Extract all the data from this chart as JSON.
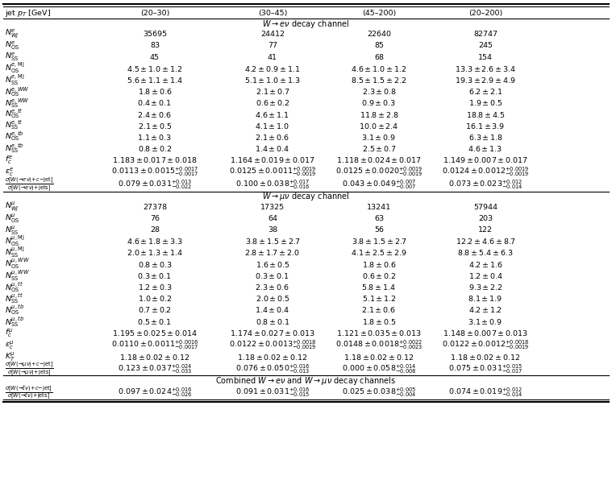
{
  "col_headers": [
    "jet $p_T$ [GeV]",
    "(20–30)",
    "(30–45)",
    "(45–200)",
    "(20–200)"
  ],
  "section1_header": "$W \\rightarrow e\\nu$ decay channel",
  "section1_rows": [
    [
      "$N^{e}_{Wj}$",
      "35695",
      "24412",
      "22640",
      "82747"
    ],
    [
      "$N^{e}_{\\mathrm{OS}}$",
      "83",
      "77",
      "85",
      "245"
    ],
    [
      "$N^{e}_{\\mathrm{SS}}$",
      "45",
      "41",
      "68",
      "154"
    ],
    [
      "$N^{e,\\mathrm{MJ}}_{\\mathrm{OS}}$",
      "$4.5\\pm1.0\\pm1.2$",
      "$4.2\\pm0.9\\pm1.1$",
      "$4.6\\pm1.0\\pm1.2$",
      "$13.3\\pm2.6\\pm3.4$"
    ],
    [
      "$N^{e,\\mathrm{MJ}}_{\\mathrm{SS}}$",
      "$5.6\\pm1.1\\pm1.4$",
      "$5.1\\pm1.0\\pm1.3$",
      "$8.5\\pm1.5\\pm2.2$",
      "$19.3\\pm2.9\\pm4.9$"
    ],
    [
      "$N^{e,WW}_{\\mathrm{OS}}$",
      "$1.8\\pm0.6$",
      "$2.1\\pm0.7$",
      "$2.3\\pm0.8$",
      "$6.2\\pm2.1$"
    ],
    [
      "$N^{e,WW}_{\\mathrm{SS}}$",
      "$0.4\\pm0.1$",
      "$0.6\\pm0.2$",
      "$0.9\\pm0.3$",
      "$1.9\\pm0.5$"
    ],
    [
      "$N^{e,tt}_{\\mathrm{OS}}$",
      "$2.4\\pm0.6$",
      "$4.6\\pm1.1$",
      "$11.8\\pm2.8$",
      "$18.8\\pm4.5$"
    ],
    [
      "$N^{e,tt}_{\\mathrm{SS}}$",
      "$2.1\\pm0.5$",
      "$4.1\\pm1.0$",
      "$10.0\\pm2.4$",
      "$16.1\\pm3.9$"
    ],
    [
      "$N^{e,tb}_{\\mathrm{OS}}$",
      "$1.1\\pm0.3$",
      "$2.1\\pm0.6$",
      "$3.1\\pm0.9$",
      "$6.3\\pm1.8$"
    ],
    [
      "$N^{e,tb}_{\\mathrm{SS}}$",
      "$0.8\\pm0.2$",
      "$1.4\\pm0.4$",
      "$2.5\\pm0.7$",
      "$4.6\\pm1.3$"
    ],
    [
      "$f^{e}_{c}$",
      "$1.183\\pm0.017\\pm0.018$",
      "$1.164\\pm0.019\\pm0.017$",
      "$1.118\\pm0.024\\pm0.017$",
      "$1.149\\pm0.007\\pm0.017$"
    ],
    [
      "$\\epsilon^{e}_{c}$",
      "$0.0113\\pm0.0015^{+0.0017}_{-0.0017}$",
      "$0.0125\\pm0.0011^{+0.0019}_{-0.0019}$",
      "$0.0125\\pm0.0020^{+0.0019}_{-0.0019}$",
      "$0.0124\\pm0.0012^{+0.0019}_{-0.0019}$"
    ],
    [
      "$\\frac{\\sigma[W(\\!\\to\\! e\\nu)\\!+\\!c\\mathrm{-jet}]}{\\sigma[W(\\!\\to\\! e\\nu)\\!+\\!\\mathrm{jets}]}$",
      "$0.079\\pm0.031^{+0.013}_{-0.022}$",
      "$0.100\\pm0.038^{+0.017}_{-0.016}$",
      "$0.043\\pm0.049^{+0.007}_{-0.007}$",
      "$0.073\\pm0.023^{+0.012}_{-0.014}$"
    ]
  ],
  "section2_header": "$W \\rightarrow \\mu\\nu$ decay channel",
  "section2_rows": [
    [
      "$N^{\\mu}_{Wj}$",
      "27378",
      "17325",
      "13241",
      "57944"
    ],
    [
      "$N^{\\mu}_{\\mathrm{OS}}$",
      "76",
      "64",
      "63",
      "203"
    ],
    [
      "$N^{\\mu}_{\\mathrm{SS}}$",
      "28",
      "38",
      "56",
      "122"
    ],
    [
      "$N^{\\mu,\\mathrm{MJ}}_{\\mathrm{OS}}$",
      "$4.6\\pm1.8\\pm3.3$",
      "$3.8\\pm1.5\\pm2.7$",
      "$3.8\\pm1.5\\pm2.7$",
      "$12.2\\pm4.6\\pm8.7$"
    ],
    [
      "$N^{\\mu,\\mathrm{MJ}}_{\\mathrm{SS}}$",
      "$2.0\\pm1.3\\pm1.4$",
      "$2.8\\pm1.7\\pm2.0$",
      "$4.1\\pm2.5\\pm2.9$",
      "$8.8\\pm5.4\\pm6.3$"
    ],
    [
      "$N^{\\mu,WW}_{\\mathrm{OS}}$",
      "$0.8\\pm0.3$",
      "$1.6\\pm0.5$",
      "$1.8\\pm0.6$",
      "$4.2\\pm1.6$"
    ],
    [
      "$N^{\\mu,WW}_{\\mathrm{SS}}$",
      "$0.3\\pm0.1$",
      "$0.3\\pm0.1$",
      "$0.6\\pm0.2$",
      "$1.2\\pm0.4$"
    ],
    [
      "$N^{\\mu,tt}_{\\mathrm{OS}}$",
      "$1.2\\pm0.3$",
      "$2.3\\pm0.6$",
      "$5.8\\pm1.4$",
      "$9.3\\pm2.2$"
    ],
    [
      "$N^{\\mu,tt}_{\\mathrm{SS}}$",
      "$1.0\\pm0.2$",
      "$2.0\\pm0.5$",
      "$5.1\\pm1.2$",
      "$8.1\\pm1.9$"
    ],
    [
      "$N^{\\mu,tb}_{\\mathrm{OS}}$",
      "$0.7\\pm0.2$",
      "$1.4\\pm0.4$",
      "$2.1\\pm0.6$",
      "$4.2\\pm1.2$"
    ],
    [
      "$N^{\\mu,tb}_{\\mathrm{SS}}$",
      "$0.5\\pm0.1$",
      "$0.8\\pm0.1$",
      "$1.8\\pm0.5$",
      "$3.1\\pm0.9$"
    ],
    [
      "$f^{\\mu}_{c}$",
      "$1.195\\pm0.025\\pm0.014$",
      "$1.174\\pm0.027\\pm0.013$",
      "$1.121\\pm0.035\\pm0.013$",
      "$1.148\\pm0.007\\pm0.013$"
    ],
    [
      "$\\epsilon^{\\mu}_{c}$",
      "$0.0110\\pm0.0011^{+0.0016}_{-0.0017}$",
      "$0.0122\\pm0.0013^{+0.0018}_{-0.0019}$",
      "$0.0148\\pm0.0018^{+0.0022}_{-0.0023}$",
      "$0.0122\\pm0.0012^{+0.0018}_{-0.0019}$"
    ],
    [
      "$K^{\\mu}_{T}$",
      "$1.18\\pm0.02\\pm0.12$",
      "$1.18\\pm0.02\\pm0.12$",
      "$1.18\\pm0.02\\pm0.12$",
      "$1.18\\pm0.02\\pm0.12$"
    ],
    [
      "$\\frac{\\sigma[W(\\!\\to\\!\\mu\\nu)\\!+\\!c\\mathrm{-jet}]}{\\sigma[W(\\!\\to\\!\\mu\\nu)\\!+\\!\\mathrm{jets}]}$",
      "$0.123\\pm0.037^{+0.024}_{-0.033}$",
      "$0.076\\pm0.050^{+0.016}_{-0.013}$",
      "$0.000\\pm0.058^{+0.014}_{-0.008}$",
      "$0.075\\pm0.031^{+0.015}_{-0.017}$"
    ]
  ],
  "section3_header": "Combined $W \\rightarrow e\\nu$ and $W \\rightarrow \\mu\\nu$ decay channels",
  "section3_rows": [
    [
      "$\\frac{\\sigma[W(\\!\\to\\!\\ell\\nu)\\!+\\!c\\mathrm{-jet}]}{\\sigma[W(\\!\\to\\!\\ell\\nu)\\!+\\!\\mathrm{jets}]}$",
      "$0.097\\pm0.024^{+0.016}_{-0.026}$",
      "$0.091\\pm0.031^{+0.016}_{-0.015}$",
      "$0.025\\pm0.038^{+0.005}_{-0.004}$",
      "$0.074\\pm0.019^{+0.012}_{-0.014}$"
    ]
  ],
  "bg_color": "#ffffff",
  "fontsize": 6.8,
  "label_fontsize": 6.8,
  "header_fontsize": 7.0
}
